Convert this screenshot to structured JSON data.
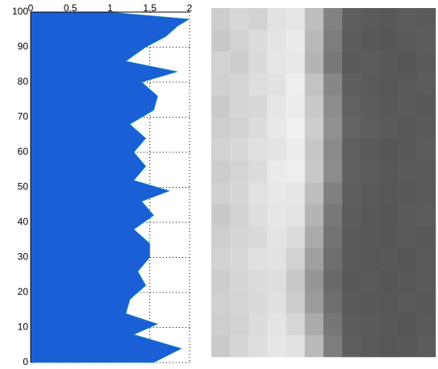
{
  "chart_data": [
    {
      "type": "area-horizontal",
      "x": [
        0,
        4,
        8,
        11,
        14,
        18,
        22,
        26,
        30,
        34,
        38,
        42,
        46,
        49,
        52,
        56,
        60,
        64,
        68,
        72,
        76,
        80,
        83,
        86,
        90,
        93,
        96,
        98,
        100
      ],
      "values": [
        1.55,
        1.9,
        1.3,
        1.6,
        1.2,
        1.25,
        1.45,
        1.35,
        1.5,
        1.5,
        1.3,
        1.55,
        1.4,
        1.75,
        1.3,
        1.45,
        1.3,
        1.45,
        1.25,
        1.55,
        1.6,
        1.4,
        1.85,
        1.2,
        1.45,
        1.7,
        1.85,
        2.0,
        1.0
      ],
      "color": "#1a5fd6",
      "xlim": [
        0,
        2
      ],
      "xticks": [
        0,
        0.5,
        1,
        1.5,
        2
      ],
      "ylim": [
        0,
        100
      ],
      "yticks": [
        0,
        10,
        20,
        30,
        40,
        50,
        60,
        70,
        80,
        90,
        100
      ],
      "grid": true
    },
    {
      "type": "image",
      "values": [
        [
          205,
          215,
          210,
          225,
          230,
          190,
          130,
          95,
          90,
          88,
          92,
          90
        ],
        [
          200,
          210,
          220,
          228,
          235,
          185,
          125,
          92,
          88,
          86,
          90,
          92
        ],
        [
          210,
          205,
          218,
          230,
          232,
          180,
          120,
          90,
          92,
          88,
          86,
          90
        ],
        [
          208,
          212,
          222,
          226,
          238,
          195,
          135,
          95,
          90,
          87,
          89,
          91
        ],
        [
          202,
          214,
          216,
          230,
          236,
          200,
          140,
          98,
          92,
          88,
          90,
          88
        ],
        [
          206,
          210,
          220,
          232,
          240,
          205,
          145,
          100,
          93,
          90,
          88,
          90
        ],
        [
          210,
          216,
          224,
          228,
          236,
          198,
          138,
          96,
          90,
          86,
          88,
          92
        ],
        [
          204,
          212,
          220,
          234,
          238,
          200,
          140,
          97,
          91,
          88,
          90,
          89
        ],
        [
          208,
          214,
          226,
          232,
          230,
          190,
          128,
          94,
          90,
          87,
          88,
          90
        ],
        [
          200,
          210,
          222,
          230,
          228,
          180,
          120,
          92,
          88,
          86,
          89,
          91
        ],
        [
          206,
          212,
          218,
          228,
          220,
          170,
          115,
          90,
          88,
          86,
          90,
          88
        ],
        [
          210,
          216,
          224,
          226,
          210,
          160,
          110,
          90,
          87,
          88,
          86,
          90
        ],
        [
          204,
          214,
          220,
          222,
          200,
          150,
          105,
          88,
          90,
          86,
          88,
          90
        ],
        [
          208,
          212,
          218,
          224,
          205,
          155,
          110,
          90,
          88,
          87,
          89,
          88
        ],
        [
          206,
          210,
          220,
          228,
          215,
          170,
          118,
          92,
          90,
          88,
          86,
          90
        ],
        [
          202,
          214,
          222,
          230,
          225,
          185,
          125,
          94,
          90,
          87,
          88,
          91
        ]
      ]
    }
  ]
}
